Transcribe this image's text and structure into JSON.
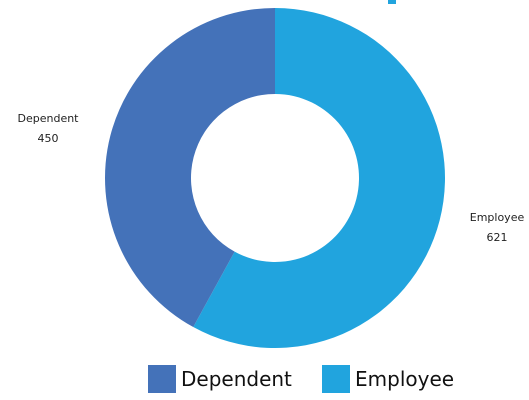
{
  "chart_data": {
    "type": "pie",
    "style": "donut",
    "slices": [
      {
        "label": "Employee",
        "value": 621,
        "color": "#21A4DE"
      },
      {
        "label": "Dependent",
        "value": 450,
        "color": "#4472B9"
      }
    ],
    "title": "",
    "legend_position": "bottom",
    "legend": [
      {
        "label": "Dependent",
        "color": "#4472B9"
      },
      {
        "label": "Employee",
        "color": "#21A4DE"
      }
    ],
    "data_labels": [
      {
        "name": "Dependent",
        "value": "450"
      },
      {
        "name": "Employee",
        "value": "621"
      }
    ]
  },
  "accent_color": "#21A4DE"
}
